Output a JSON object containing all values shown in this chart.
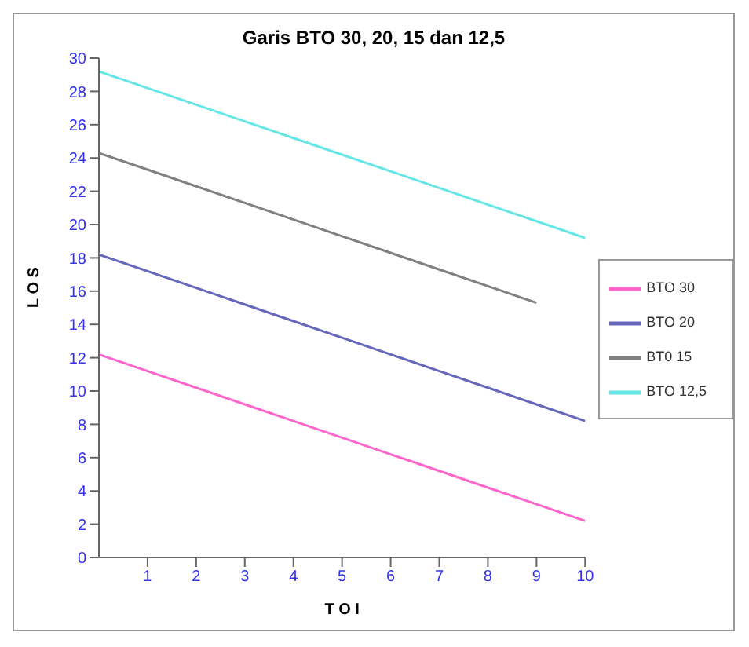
{
  "chart_data": {
    "type": "line",
    "title": "Garis BTO 30, 20, 15 dan 12,5",
    "xlabel": "T O I",
    "ylabel": "L O S",
    "x": [
      0,
      1,
      2,
      3,
      4,
      5,
      6,
      7,
      8,
      9,
      10
    ],
    "series": [
      {
        "name": "BTO 30",
        "color": "#ff66cc",
        "values": [
          12.2,
          11.2,
          10.2,
          9.2,
          8.2,
          7.2,
          6.2,
          5.2,
          4.2,
          3.2,
          2.2
        ]
      },
      {
        "name": "BTO 20",
        "color": "#6666bb",
        "values": [
          18.2,
          17.2,
          16.2,
          15.2,
          14.2,
          13.2,
          12.2,
          11.2,
          10.2,
          9.2,
          8.2
        ]
      },
      {
        "name": "BT0 15",
        "color": "#808080",
        "values": [
          24.3,
          23.3,
          22.3,
          21.3,
          20.3,
          19.3,
          18.3,
          17.3,
          16.3,
          15.3,
          null
        ]
      },
      {
        "name": "BTO 12,5",
        "color": "#66e6e6",
        "values": [
          29.2,
          28.2,
          27.2,
          26.2,
          25.2,
          24.2,
          23.2,
          22.2,
          21.2,
          20.2,
          19.2
        ]
      }
    ],
    "xlim": [
      0,
      10
    ],
    "xticks": [
      1,
      2,
      3,
      4,
      5,
      6,
      7,
      8,
      9,
      10
    ],
    "ylim": [
      0,
      30
    ],
    "yticks": [
      0,
      2,
      4,
      6,
      8,
      10,
      12,
      14,
      16,
      18,
      20,
      22,
      24,
      26,
      28,
      30
    ],
    "grid": false,
    "legend": "right",
    "marker": "none",
    "line_style": "solid"
  }
}
